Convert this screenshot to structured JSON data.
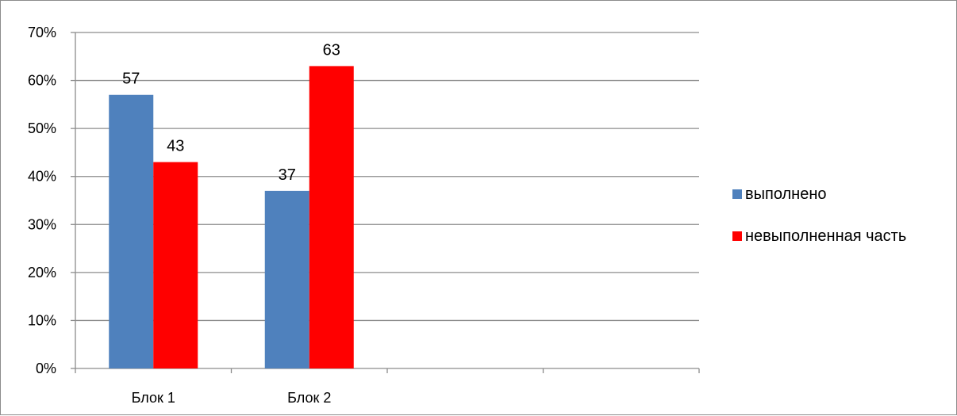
{
  "chart_data": {
    "type": "bar",
    "categories": [
      "Блок 1",
      "Блок 2",
      "",
      ""
    ],
    "series": [
      {
        "name": "выполнено",
        "values": [
          57,
          37,
          null,
          null
        ],
        "color": "#4f81bd"
      },
      {
        "name": "невыполненная часть",
        "values": [
          43,
          63,
          null,
          null
        ],
        "color": "#ff0000"
      }
    ],
    "data_labels": [
      [
        "57",
        "37"
      ],
      [
        "43",
        "63"
      ]
    ],
    "ylim": [
      0,
      70
    ],
    "yticks": [
      "0%",
      "10%",
      "20%",
      "30%",
      "40%",
      "50%",
      "60%",
      "70%"
    ],
    "grid": true,
    "legend": "right",
    "title": "",
    "xlabel": "",
    "ylabel": ""
  }
}
